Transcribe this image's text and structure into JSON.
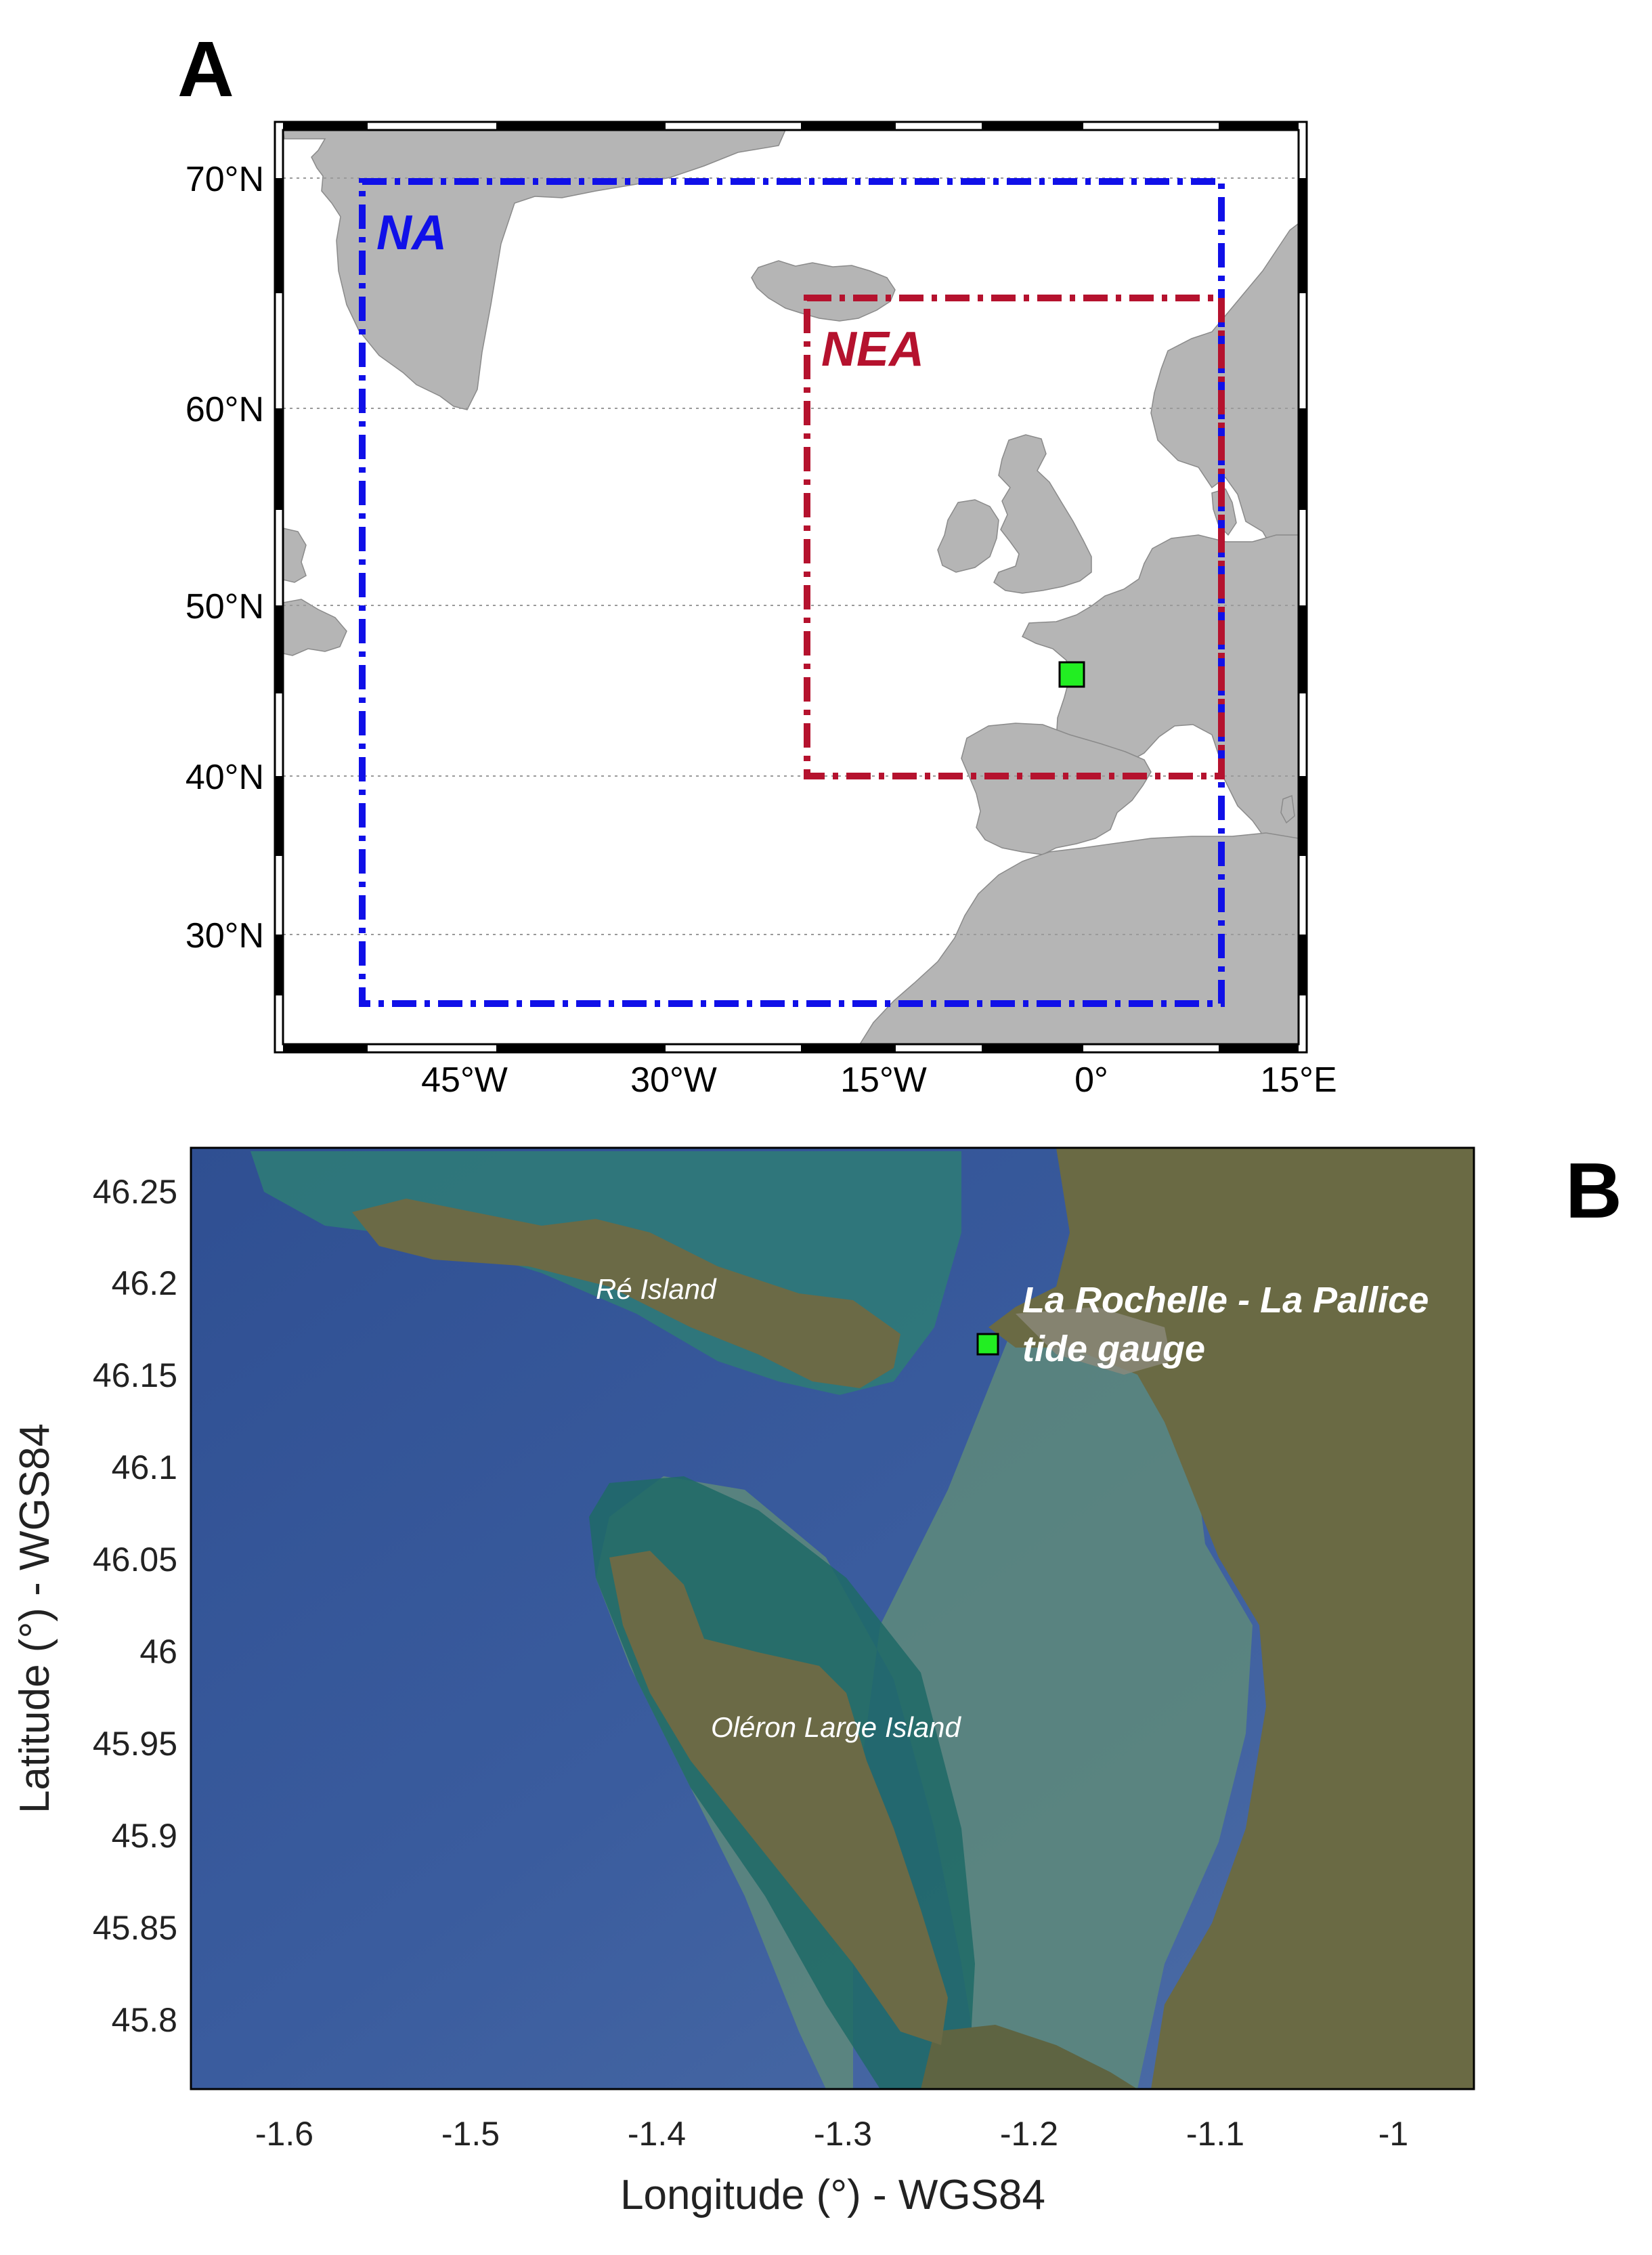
{
  "panel_a": {
    "label": "A",
    "lat_ticks": [
      {
        "value": 70,
        "label": "70°N"
      },
      {
        "value": 60,
        "label": "60°N"
      },
      {
        "value": 50,
        "label": "50°N"
      },
      {
        "value": 40,
        "label": "40°N"
      },
      {
        "value": 30,
        "label": "30°N"
      }
    ],
    "lon_ticks": [
      {
        "value": -45,
        "label": "45°W"
      },
      {
        "value": -30,
        "label": "30°W"
      },
      {
        "value": -15,
        "label": "15°W"
      },
      {
        "value": 0,
        "label": "0°"
      },
      {
        "value": 15,
        "label": "15°E"
      }
    ],
    "regions": {
      "na": {
        "label": "NA",
        "color": "#1010e8",
        "lon": [
          -52,
          8.5
        ],
        "lat": [
          26,
          70
        ]
      },
      "nea": {
        "label": "NEA",
        "color": "#b5122e",
        "lon": [
          -20,
          8.5
        ],
        "lat": [
          40,
          65
        ]
      }
    },
    "tide_gauge_marker": {
      "lon": -1.22,
      "lat": 46.16,
      "color": "#22ee22"
    }
  },
  "panel_b": {
    "label": "B",
    "xlabel": "Longitude (°) - WGS84",
    "ylabel": "Latitude (°) - WGS84",
    "x_ticks": [
      "-1.6",
      "-1.5",
      "-1.4",
      "-1.3",
      "-1.2",
      "-1.1",
      "-1"
    ],
    "y_ticks": [
      "46.25",
      "46.2",
      "46.15",
      "46.1",
      "46.05",
      "46",
      "45.95",
      "45.9",
      "45.85",
      "45.8"
    ],
    "place_labels": {
      "re_island": "Ré Island",
      "oleron": "Oléron Large Island",
      "tide_gauge_line1": "La Rochelle - La Pallice",
      "tide_gauge_line2": "tide gauge"
    },
    "tide_gauge_marker": {
      "color": "#22ee22"
    }
  }
}
